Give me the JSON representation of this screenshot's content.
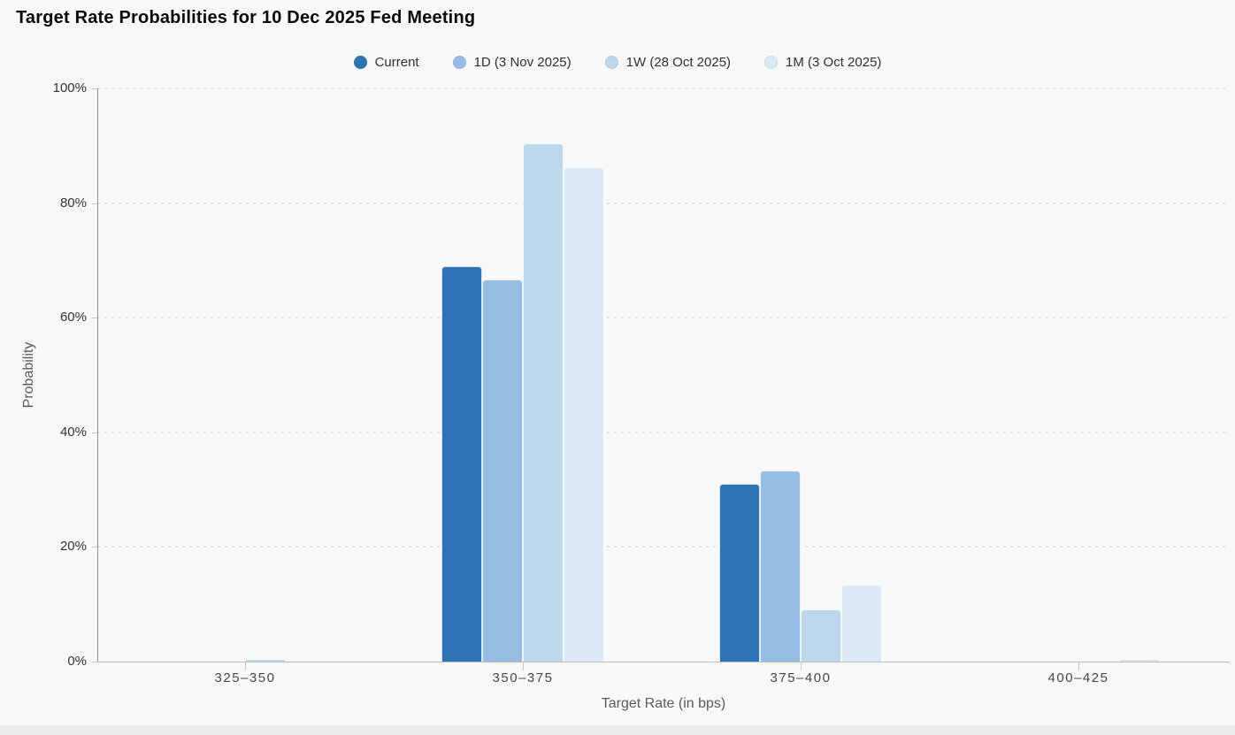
{
  "chart_data": {
    "type": "bar",
    "title": "Target Rate Probabilities for 10 Dec 2025 Fed Meeting",
    "xlabel": "Target Rate (in bps)",
    "ylabel": "Probability",
    "categories": [
      "325–350",
      "350–375",
      "375–400",
      "400–425"
    ],
    "series": [
      {
        "name": "Current",
        "color": "#2e73b6",
        "border_color": "#2a68a5",
        "values": [
          0,
          69.0,
          31.0,
          0
        ]
      },
      {
        "name": "1D (3 Nov 2025)",
        "color": "#98bde5",
        "border_color": "#88b0da",
        "values": [
          0,
          66.6,
          33.4,
          0
        ]
      },
      {
        "name": "1W (28 Oct 2025)",
        "color": "#bdd7ec",
        "border_color": "#accbe3",
        "values": [
          0.5,
          90.4,
          9.1,
          0
        ]
      },
      {
        "name": "1M (3 Oct 2025)",
        "color": "#dbe8f5",
        "border_color": "#c9dcef",
        "values": [
          0,
          86.2,
          13.4,
          0.4
        ]
      }
    ],
    "ylim": [
      0,
      100
    ],
    "yticks": [
      {
        "label": "0%",
        "value": 0
      },
      {
        "label": "20%",
        "value": 20
      },
      {
        "label": "40%",
        "value": 40
      },
      {
        "label": "60%",
        "value": 60
      },
      {
        "label": "80%",
        "value": 80
      },
      {
        "label": "100%",
        "value": 100
      }
    ],
    "grid": true,
    "legend_position": "top"
  }
}
